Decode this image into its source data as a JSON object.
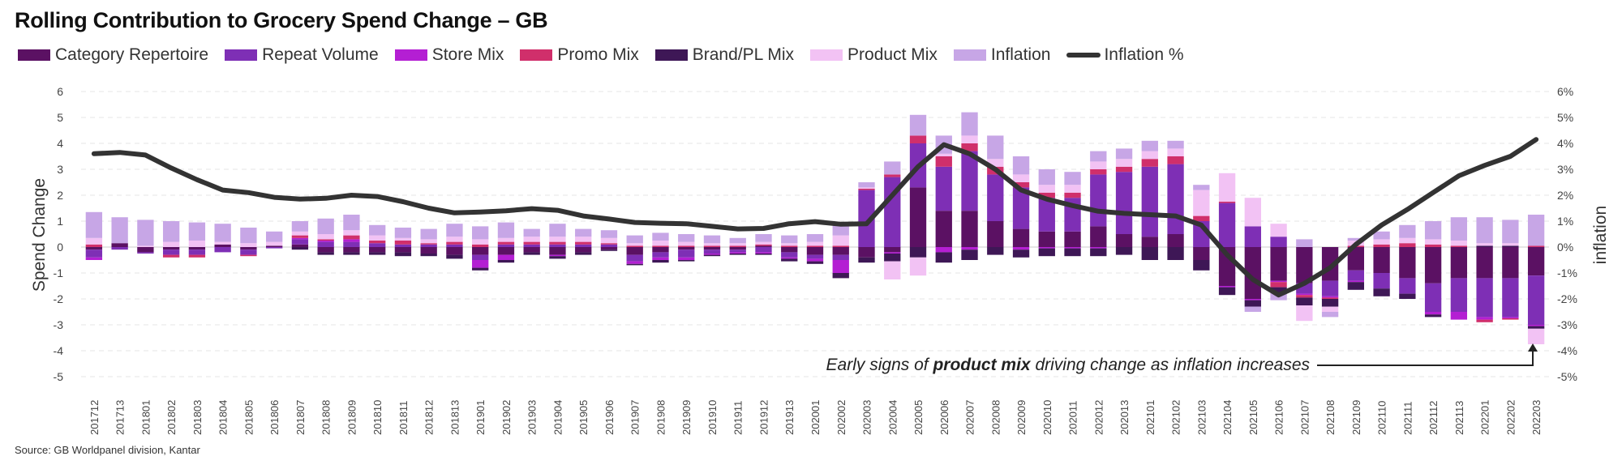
{
  "chart_data": {
    "type": "bar",
    "title": "Rolling Contribution to Grocery Spend Change – GB",
    "ylabel": "Spend Change",
    "y2label": "inflation",
    "ylim": [
      -5,
      6
    ],
    "y2lim": [
      -5,
      6
    ],
    "yticks": [
      "6",
      "5",
      "4",
      "3",
      "2",
      "1",
      "0",
      "-1",
      "-2",
      "-3",
      "-4",
      "-5"
    ],
    "y2ticks": [
      "6%",
      "5%",
      "4%",
      "3%",
      "2%",
      "1%",
      "0%",
      "-1%",
      "-2%",
      "-3%",
      "-4%",
      "-5%"
    ],
    "grid": true,
    "legend_position": "top-left",
    "categories": [
      "201712",
      "201713",
      "201801",
      "201802",
      "201803",
      "201804",
      "201805",
      "201806",
      "201807",
      "201808",
      "201809",
      "201810",
      "201811",
      "201812",
      "201813",
      "201901",
      "201902",
      "201903",
      "201904",
      "201905",
      "201906",
      "201907",
      "201908",
      "201909",
      "201910",
      "201911",
      "201912",
      "201913",
      "202001",
      "202002",
      "202003",
      "202004",
      "202005",
      "202006",
      "202007",
      "202008",
      "202009",
      "202010",
      "202011",
      "202012",
      "202013",
      "202101",
      "202102",
      "202103",
      "202104",
      "202105",
      "202106",
      "202107",
      "202108",
      "202109",
      "202110",
      "202111",
      "202112",
      "202113",
      "202201",
      "202202",
      "202203"
    ],
    "series": [
      {
        "name": "Category Repertoire",
        "color": "#5B1163",
        "values": [
          -0.1,
          0.15,
          -0.2,
          -0.1,
          -0.1,
          0.1,
          -0.1,
          0.05,
          0.1,
          -0.2,
          -0.2,
          -0.2,
          -0.2,
          -0.25,
          -0.3,
          -0.3,
          -0.3,
          -0.2,
          -0.3,
          -0.2,
          -0.1,
          -0.3,
          -0.2,
          -0.1,
          -0.1,
          -0.1,
          0.05,
          -0.2,
          -0.3,
          -0.3,
          -0.4,
          -0.2,
          2.3,
          1.4,
          1.4,
          1.0,
          0.7,
          0.6,
          0.6,
          0.8,
          0.5,
          0.4,
          0.5,
          -0.5,
          -1.5,
          -2.0,
          -1.3,
          -1.4,
          -1.3,
          -0.9,
          -1.0,
          -1.2,
          -1.4,
          -1.2,
          -1.2,
          -1.2,
          -1.1
        ]
      },
      {
        "name": "Repeat Volume",
        "color": "#7E2FB5",
        "values": [
          -0.3,
          -0.1,
          -0.05,
          -0.2,
          -0.2,
          -0.2,
          -0.2,
          -0.05,
          0.2,
          0.2,
          0.2,
          0.15,
          0.1,
          0.1,
          0.1,
          -0.2,
          0.1,
          0.1,
          0.1,
          0.1,
          0.1,
          -0.25,
          -0.2,
          -0.3,
          -0.15,
          -0.1,
          -0.2,
          -0.2,
          -0.15,
          -0.2,
          2.2,
          2.7,
          1.7,
          1.7,
          2.3,
          1.8,
          1.6,
          1.3,
          1.3,
          2.0,
          2.4,
          2.7,
          2.7,
          1.0,
          1.7,
          0.8,
          0.4,
          -0.4,
          -0.6,
          -0.4,
          -0.6,
          -0.6,
          -1.1,
          -1.3,
          -1.5,
          -1.5,
          -1.9
        ]
      },
      {
        "name": "Store Mix",
        "color": "#B41FD3",
        "values": [
          -0.1,
          0,
          0,
          0,
          0,
          0,
          0,
          0,
          0.05,
          0.05,
          0.1,
          0,
          0,
          0,
          0,
          -0.3,
          -0.2,
          0,
          -0.05,
          0,
          0,
          -0.1,
          -0.1,
          -0.1,
          -0.05,
          -0.05,
          -0.05,
          -0.05,
          -0.1,
          -0.5,
          0,
          -0.05,
          0,
          -0.2,
          -0.1,
          0,
          -0.1,
          -0.05,
          -0.05,
          -0.05,
          0,
          0,
          0,
          0,
          -0.05,
          -0.05,
          -0.05,
          -0.05,
          -0.05,
          -0.05,
          0,
          0,
          -0.1,
          -0.3,
          -0.1,
          -0.05,
          -0.05
        ]
      },
      {
        "name": "Promo Mix",
        "color": "#D02F6B",
        "values": [
          0.1,
          0,
          0,
          -0.1,
          -0.1,
          0,
          -0.05,
          0,
          0.1,
          0.05,
          0.15,
          0.1,
          0.15,
          0.05,
          0.1,
          0.1,
          0.1,
          0.1,
          0.1,
          0.1,
          0.05,
          0.05,
          0.05,
          0.05,
          0.05,
          0.05,
          0.05,
          0.05,
          0.05,
          0.05,
          0.05,
          0.1,
          0.3,
          0.4,
          0.3,
          0.3,
          0.2,
          0.2,
          0.2,
          0.2,
          0.2,
          0.3,
          0.3,
          0.2,
          0.05,
          0,
          -0.2,
          -0.1,
          -0.05,
          0.05,
          0.1,
          0.15,
          0.1,
          0.05,
          -0.1,
          -0.05,
          0.05
        ]
      },
      {
        "name": "Brand/PL Mix",
        "color": "#3E1756",
        "values": [
          0,
          0,
          0,
          0,
          0,
          0,
          0,
          0,
          -0.1,
          -0.1,
          -0.1,
          -0.1,
          -0.15,
          -0.1,
          -0.15,
          -0.1,
          -0.1,
          -0.1,
          -0.1,
          -0.1,
          -0.05,
          -0.05,
          -0.1,
          -0.05,
          -0.05,
          -0.05,
          -0.05,
          -0.1,
          -0.1,
          -0.2,
          -0.2,
          -0.3,
          -0.4,
          -0.4,
          -0.4,
          -0.3,
          -0.3,
          -0.3,
          -0.3,
          -0.3,
          -0.3,
          -0.5,
          -0.5,
          -0.4,
          -0.3,
          -0.25,
          -0.2,
          -0.3,
          -0.3,
          -0.3,
          -0.3,
          -0.2,
          -0.1,
          0,
          0.05,
          0.05,
          -0.1
        ]
      },
      {
        "name": "Product Mix",
        "color": "#F2C2F4",
        "values": [
          0.25,
          0,
          0.05,
          0.2,
          0.25,
          0.1,
          0.15,
          0.15,
          0.15,
          0.2,
          0.2,
          0.2,
          0.1,
          0.15,
          0.2,
          0.2,
          0.15,
          0.2,
          0.2,
          0.2,
          0.2,
          0.1,
          0.2,
          0.15,
          0.1,
          0.1,
          0.1,
          0.1,
          0.15,
          0.4,
          0.05,
          -0.7,
          -0.7,
          0.1,
          0.3,
          0.3,
          0.3,
          0.3,
          0.3,
          0.3,
          0.3,
          0.3,
          0.3,
          1.0,
          1.1,
          1.1,
          0.5,
          -0.6,
          -0.2,
          0.2,
          0.2,
          0.2,
          0.2,
          0.2,
          0.1,
          0.1,
          -0.6
        ]
      },
      {
        "name": "Inflation",
        "color": "#C7A6E6",
        "values": [
          1.0,
          1.0,
          1.0,
          0.8,
          0.7,
          0.7,
          0.6,
          0.4,
          0.4,
          0.6,
          0.6,
          0.4,
          0.4,
          0.4,
          0.5,
          0.5,
          0.6,
          0.3,
          0.5,
          0.3,
          0.3,
          0.3,
          0.3,
          0.3,
          0.3,
          0.2,
          0.3,
          0.3,
          0.3,
          0.5,
          0.2,
          0.5,
          0.8,
          0.7,
          0.9,
          0.9,
          0.7,
          0.6,
          0.5,
          0.4,
          0.4,
          0.4,
          0.3,
          0.2,
          0,
          -0.2,
          -0.3,
          0.3,
          -0.2,
          0.1,
          0.3,
          0.5,
          0.7,
          0.9,
          1.0,
          0.9,
          1.2
        ]
      },
      {
        "name": "Inflation %",
        "type": "line",
        "color": "#333333",
        "values": [
          3.6,
          3.65,
          3.55,
          3.05,
          2.6,
          2.2,
          2.1,
          1.92,
          1.85,
          1.88,
          2.0,
          1.95,
          1.75,
          1.5,
          1.32,
          1.35,
          1.4,
          1.48,
          1.42,
          1.2,
          1.08,
          0.95,
          0.92,
          0.9,
          0.8,
          0.7,
          0.72,
          0.9,
          0.98,
          0.88,
          0.9,
          2.0,
          3.1,
          3.95,
          3.6,
          3.0,
          2.2,
          1.85,
          1.6,
          1.38,
          1.3,
          1.25,
          1.2,
          0.85,
          -0.3,
          -1.25,
          -1.85,
          -1.4,
          -0.8,
          0.1,
          0.85,
          1.45,
          2.1,
          2.75,
          3.15,
          3.5,
          4.15
        ]
      }
    ],
    "annotation": {
      "parts": [
        "Early signs of ",
        "product mix",
        " driving change as inflation increases"
      ]
    }
  },
  "source": "Source: GB Worldpanel division, Kantar"
}
